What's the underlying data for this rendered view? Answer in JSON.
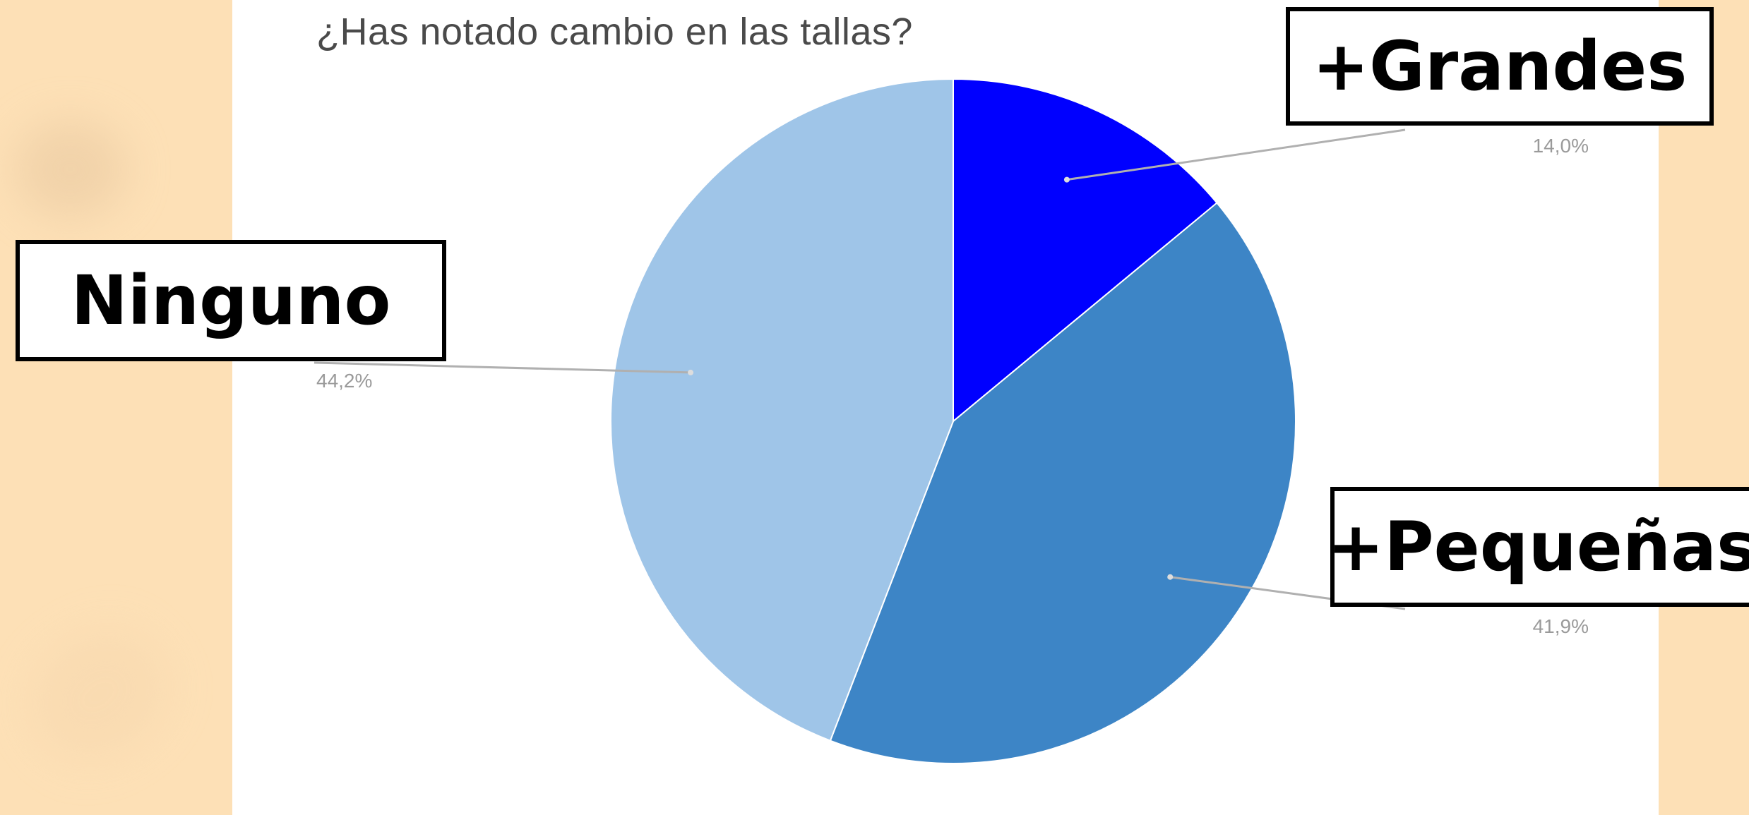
{
  "chart_data": {
    "type": "pie",
    "title": "¿Has notado cambio en las tallas?",
    "slices": [
      {
        "label": "+Grandes",
        "value": 14.0,
        "value_label": "14,0%",
        "color": "#0000ff"
      },
      {
        "label": "+Pequeñas",
        "value": 41.9,
        "value_label": "41,9%",
        "color": "#3d85c6"
      },
      {
        "label": "Ninguno",
        "value": 44.2,
        "value_label": "44,2%",
        "color": "#9fc5e8"
      }
    ],
    "start_angle_deg": 0,
    "direction": "clockwise"
  },
  "callouts": {
    "grandes": "+Grandes",
    "ninguno": "Ninguno",
    "pequenas": "+Pequeñas"
  },
  "colors": {
    "background": "#fde0b6",
    "panel": "#ffffff",
    "leader_line": "#b0b0b0"
  }
}
